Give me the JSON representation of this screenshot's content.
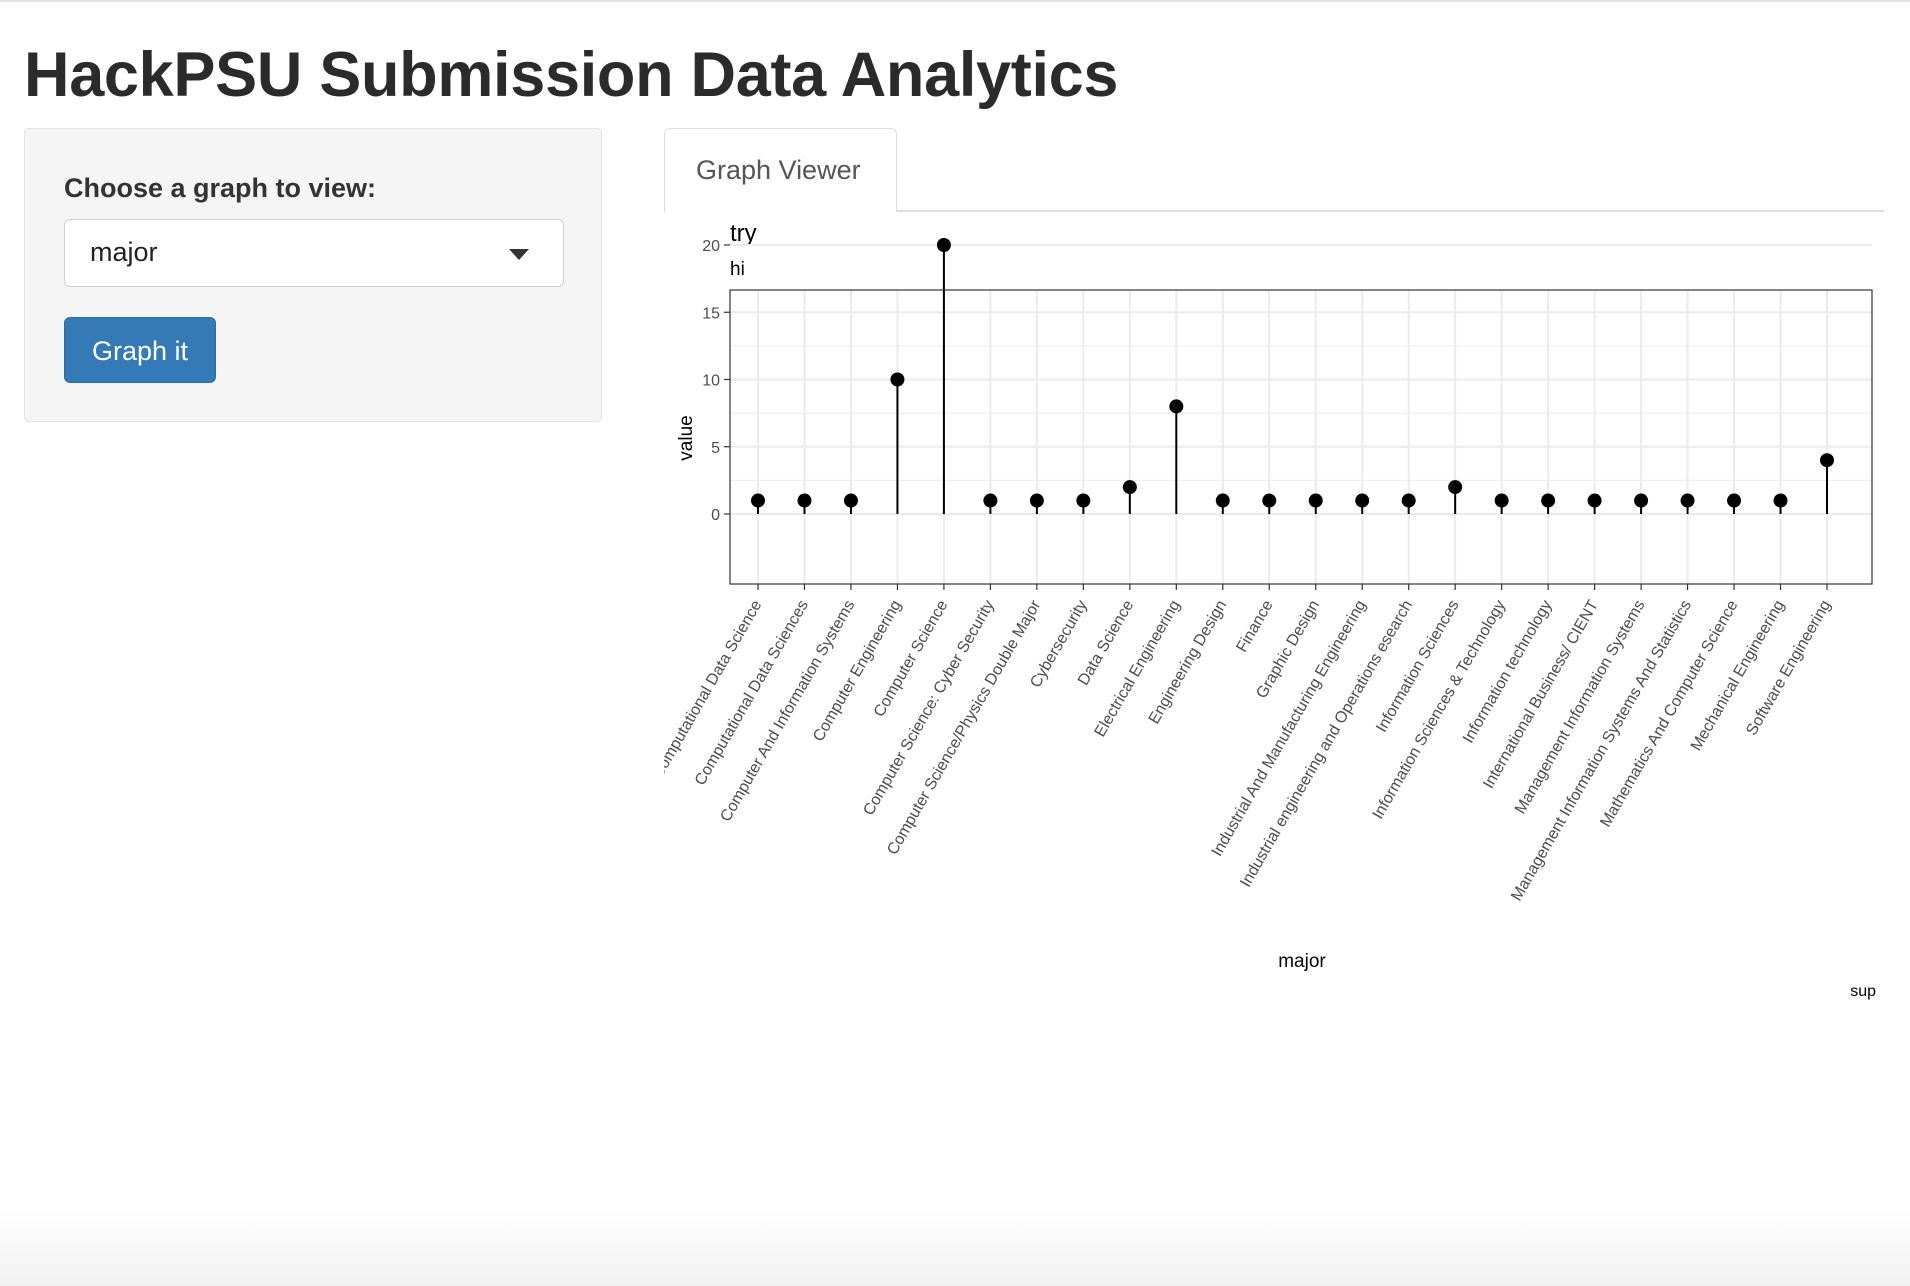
{
  "page": {
    "title": "HackPSU Submission Data Analytics"
  },
  "sidebar": {
    "label": "Choose a graph to view:",
    "select_value": "major",
    "button_label": "Graph it"
  },
  "tabs": [
    {
      "label": "Graph Viewer"
    }
  ],
  "chart_data": {
    "type": "lollipop",
    "title": "try",
    "subtitle": "hi",
    "xlabel": "major",
    "ylabel": "value",
    "caption": "sup",
    "ylim": [
      0,
      21
    ],
    "yticks": [
      0,
      5,
      10,
      15,
      20
    ],
    "grid": true,
    "categories": [
      "Computational Data Science",
      "Computational Data Sciences",
      "Computer And Information Systems",
      "Computer Engineering",
      "Computer Science",
      "Computer Science: Cyber Security",
      "Computer Science/Physics Double Major",
      "Cybersecurity",
      "Data Science",
      "Electrical Engineering",
      "Engineering Design",
      "Finance",
      "Graphic Design",
      "Industrial And Manufacturing Engineering",
      "Industrial engineering and Operations esearch",
      "Information Sciences",
      "Information Sciences & Technology",
      "Information technology",
      "International Business/ CIENT",
      "Management Information Systems",
      "Management Information Systems And Statistics",
      "Mathematics And Computer Science",
      "Mechanical Engineering",
      "Software Engineering"
    ],
    "values": [
      1,
      1,
      1,
      10,
      20,
      1,
      1,
      1,
      2,
      8,
      1,
      1,
      1,
      1,
      1,
      2,
      1,
      1,
      1,
      1,
      1,
      1,
      1,
      4
    ],
    "colors": {
      "mark": "#000000",
      "grid": "#ebebeb",
      "panel_border": "#333333"
    }
  }
}
